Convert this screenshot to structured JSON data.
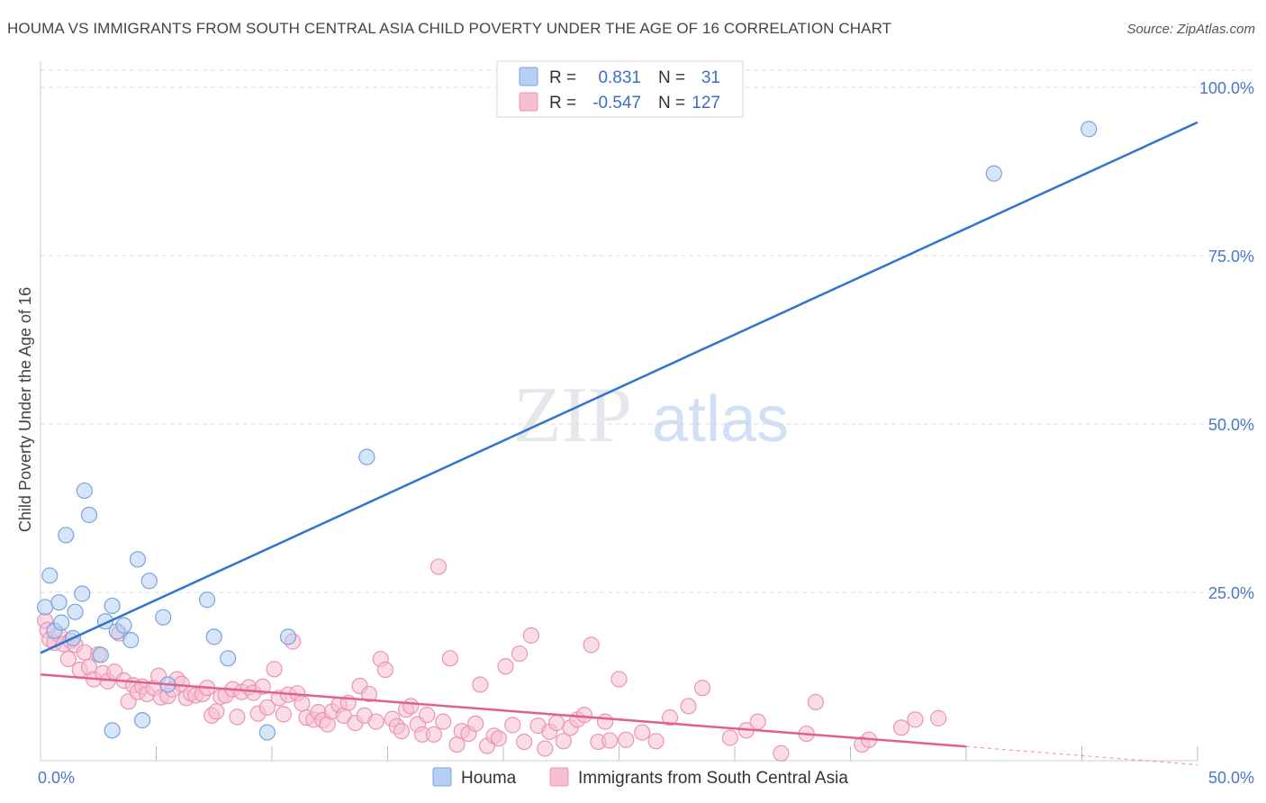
{
  "title": "HOUMA VS IMMIGRANTS FROM SOUTH CENTRAL ASIA CHILD POVERTY UNDER THE AGE OF 16 CORRELATION CHART",
  "source": "Source: ZipAtlas.com",
  "watermark": {
    "zip": "ZIP",
    "atlas": "atlas"
  },
  "colors": {
    "blue_fill": "#b7cff2",
    "blue_stroke": "#7aa3e0",
    "blue_line": "#2f74d0",
    "pink_fill": "#f6bfd1",
    "pink_stroke": "#ec94b3",
    "pink_line": "#e0608f",
    "grid": "#dddddd",
    "tick_text": "#4a78c8"
  },
  "legend": {
    "rows": [
      {
        "r_label": "R =",
        "r_value": "0.831",
        "n_label": "N =",
        "n_value": "31"
      },
      {
        "r_label": "R =",
        "r_value": "-0.547",
        "n_label": "N =",
        "n_value": "127"
      }
    ]
  },
  "chart_data": {
    "type": "scatter",
    "title": "HOUMA VS IMMIGRANTS FROM SOUTH CENTRAL ASIA CHILD POVERTY UNDER THE AGE OF 16 CORRELATION CHART",
    "xlabel": "",
    "ylabel": "Child Poverty Under the Age of 16",
    "xlim": [
      0,
      50
    ],
    "ylim": [
      0,
      100
    ],
    "x_tick_labels": [
      "0.0%",
      "50.0%"
    ],
    "y_ticks": [
      25,
      50,
      75,
      100
    ],
    "y_tick_labels": [
      "25.0%",
      "50.0%",
      "75.0%",
      "100.0%"
    ],
    "grid": true,
    "legend_position": "top-center",
    "series": [
      {
        "name": "Houma",
        "r": 0.831,
        "n": 31,
        "trend": {
          "x": [
            0,
            50
          ],
          "y": [
            16.0,
            94.8
          ]
        },
        "points": [
          {
            "x": 0.2,
            "y": 22.8
          },
          {
            "x": 0.4,
            "y": 27.5
          },
          {
            "x": 0.6,
            "y": 19.3
          },
          {
            "x": 0.8,
            "y": 23.5
          },
          {
            "x": 0.9,
            "y": 20.5
          },
          {
            "x": 1.1,
            "y": 33.5
          },
          {
            "x": 1.4,
            "y": 18.2
          },
          {
            "x": 1.5,
            "y": 22.1
          },
          {
            "x": 1.8,
            "y": 24.8
          },
          {
            "x": 1.9,
            "y": 40.1
          },
          {
            "x": 2.1,
            "y": 36.5
          },
          {
            "x": 2.6,
            "y": 15.7
          },
          {
            "x": 2.8,
            "y": 20.7
          },
          {
            "x": 3.1,
            "y": 23.0
          },
          {
            "x": 3.1,
            "y": 4.5
          },
          {
            "x": 3.3,
            "y": 19.2
          },
          {
            "x": 3.6,
            "y": 20.1
          },
          {
            "x": 3.9,
            "y": 17.9
          },
          {
            "x": 4.2,
            "y": 29.9
          },
          {
            "x": 4.4,
            "y": 6.0
          },
          {
            "x": 4.7,
            "y": 26.7
          },
          {
            "x": 5.3,
            "y": 21.3
          },
          {
            "x": 5.5,
            "y": 11.3
          },
          {
            "x": 7.2,
            "y": 23.9
          },
          {
            "x": 7.5,
            "y": 18.4
          },
          {
            "x": 8.1,
            "y": 15.2
          },
          {
            "x": 9.8,
            "y": 4.2
          },
          {
            "x": 10.7,
            "y": 18.4
          },
          {
            "x": 14.1,
            "y": 45.1
          },
          {
            "x": 41.2,
            "y": 87.2
          },
          {
            "x": 45.3,
            "y": 93.8
          }
        ]
      },
      {
        "name": "Immigrants from South Central Asia",
        "r": -0.547,
        "n": 127,
        "trend": {
          "x": [
            0,
            40
          ],
          "y": [
            12.8,
            2.1
          ]
        },
        "trend_dashed": {
          "x": [
            40,
            50
          ],
          "y": [
            2.1,
            -0.6
          ]
        },
        "points": [
          {
            "x": 0.2,
            "y": 20.8
          },
          {
            "x": 0.3,
            "y": 19.4
          },
          {
            "x": 0.4,
            "y": 18.0
          },
          {
            "x": 0.6,
            "y": 17.5
          },
          {
            "x": 0.8,
            "y": 18.7
          },
          {
            "x": 1.0,
            "y": 17.3
          },
          {
            "x": 1.2,
            "y": 15.1
          },
          {
            "x": 1.3,
            "y": 17.8
          },
          {
            "x": 1.5,
            "y": 17.2
          },
          {
            "x": 1.7,
            "y": 13.5
          },
          {
            "x": 1.9,
            "y": 16.1
          },
          {
            "x": 2.1,
            "y": 13.9
          },
          {
            "x": 2.3,
            "y": 12.1
          },
          {
            "x": 2.5,
            "y": 15.8
          },
          {
            "x": 2.7,
            "y": 13.0
          },
          {
            "x": 2.9,
            "y": 11.8
          },
          {
            "x": 3.2,
            "y": 13.2
          },
          {
            "x": 3.4,
            "y": 18.9
          },
          {
            "x": 3.6,
            "y": 11.9
          },
          {
            "x": 3.8,
            "y": 8.8
          },
          {
            "x": 4.0,
            "y": 11.2
          },
          {
            "x": 4.2,
            "y": 10.2
          },
          {
            "x": 4.4,
            "y": 11.0
          },
          {
            "x": 4.6,
            "y": 9.9
          },
          {
            "x": 4.9,
            "y": 10.8
          },
          {
            "x": 5.1,
            "y": 12.6
          },
          {
            "x": 5.2,
            "y": 9.4
          },
          {
            "x": 5.5,
            "y": 9.6
          },
          {
            "x": 5.7,
            "y": 10.6
          },
          {
            "x": 5.9,
            "y": 12.1
          },
          {
            "x": 6.1,
            "y": 11.4
          },
          {
            "x": 6.3,
            "y": 9.3
          },
          {
            "x": 6.5,
            "y": 10.0
          },
          {
            "x": 6.7,
            "y": 9.7
          },
          {
            "x": 7.0,
            "y": 9.9
          },
          {
            "x": 7.2,
            "y": 10.8
          },
          {
            "x": 7.4,
            "y": 6.7
          },
          {
            "x": 7.6,
            "y": 7.3
          },
          {
            "x": 7.8,
            "y": 9.5
          },
          {
            "x": 8.0,
            "y": 9.7
          },
          {
            "x": 8.3,
            "y": 10.6
          },
          {
            "x": 8.5,
            "y": 6.5
          },
          {
            "x": 8.7,
            "y": 10.2
          },
          {
            "x": 9.0,
            "y": 10.9
          },
          {
            "x": 9.2,
            "y": 10.1
          },
          {
            "x": 9.4,
            "y": 7.0
          },
          {
            "x": 9.6,
            "y": 11.0
          },
          {
            "x": 9.8,
            "y": 7.9
          },
          {
            "x": 10.1,
            "y": 13.6
          },
          {
            "x": 10.3,
            "y": 9.3
          },
          {
            "x": 10.5,
            "y": 6.9
          },
          {
            "x": 10.7,
            "y": 9.8
          },
          {
            "x": 10.9,
            "y": 17.7
          },
          {
            "x": 11.1,
            "y": 10.0
          },
          {
            "x": 11.3,
            "y": 8.5
          },
          {
            "x": 11.5,
            "y": 6.4
          },
          {
            "x": 11.8,
            "y": 6.1
          },
          {
            "x": 12.0,
            "y": 7.2
          },
          {
            "x": 12.2,
            "y": 6.0
          },
          {
            "x": 12.4,
            "y": 5.4
          },
          {
            "x": 12.6,
            "y": 7.3
          },
          {
            "x": 12.9,
            "y": 8.3
          },
          {
            "x": 13.1,
            "y": 6.7
          },
          {
            "x": 13.3,
            "y": 8.6
          },
          {
            "x": 13.6,
            "y": 5.6
          },
          {
            "x": 13.8,
            "y": 11.1
          },
          {
            "x": 14.0,
            "y": 6.7
          },
          {
            "x": 14.2,
            "y": 9.9
          },
          {
            "x": 14.5,
            "y": 5.8
          },
          {
            "x": 14.7,
            "y": 15.1
          },
          {
            "x": 14.9,
            "y": 13.5
          },
          {
            "x": 15.2,
            "y": 6.2
          },
          {
            "x": 15.4,
            "y": 5.1
          },
          {
            "x": 15.6,
            "y": 4.4
          },
          {
            "x": 15.8,
            "y": 7.6
          },
          {
            "x": 16.0,
            "y": 8.1
          },
          {
            "x": 16.3,
            "y": 5.4
          },
          {
            "x": 16.5,
            "y": 3.9
          },
          {
            "x": 16.7,
            "y": 6.8
          },
          {
            "x": 17.0,
            "y": 3.9
          },
          {
            "x": 17.2,
            "y": 28.8
          },
          {
            "x": 17.4,
            "y": 5.8
          },
          {
            "x": 17.7,
            "y": 15.2
          },
          {
            "x": 18.0,
            "y": 2.4
          },
          {
            "x": 18.2,
            "y": 4.4
          },
          {
            "x": 18.5,
            "y": 4.0
          },
          {
            "x": 18.8,
            "y": 5.5
          },
          {
            "x": 19.0,
            "y": 11.3
          },
          {
            "x": 19.3,
            "y": 2.2
          },
          {
            "x": 19.6,
            "y": 3.7
          },
          {
            "x": 19.8,
            "y": 3.3
          },
          {
            "x": 20.1,
            "y": 14.0
          },
          {
            "x": 20.4,
            "y": 5.3
          },
          {
            "x": 20.7,
            "y": 15.9
          },
          {
            "x": 20.9,
            "y": 2.8
          },
          {
            "x": 21.2,
            "y": 18.6
          },
          {
            "x": 21.5,
            "y": 5.2
          },
          {
            "x": 21.8,
            "y": 1.8
          },
          {
            "x": 22.0,
            "y": 4.3
          },
          {
            "x": 22.3,
            "y": 5.6
          },
          {
            "x": 22.6,
            "y": 2.9
          },
          {
            "x": 22.9,
            "y": 4.9
          },
          {
            "x": 23.2,
            "y": 6.1
          },
          {
            "x": 23.5,
            "y": 6.8
          },
          {
            "x": 23.8,
            "y": 17.2
          },
          {
            "x": 24.1,
            "y": 2.8
          },
          {
            "x": 24.4,
            "y": 5.8
          },
          {
            "x": 24.6,
            "y": 3.0
          },
          {
            "x": 25.0,
            "y": 12.1
          },
          {
            "x": 25.3,
            "y": 3.1
          },
          {
            "x": 26.0,
            "y": 4.2
          },
          {
            "x": 26.6,
            "y": 2.9
          },
          {
            "x": 27.2,
            "y": 6.4
          },
          {
            "x": 28.0,
            "y": 8.1
          },
          {
            "x": 28.6,
            "y": 10.8
          },
          {
            "x": 29.8,
            "y": 3.4
          },
          {
            "x": 30.5,
            "y": 4.5
          },
          {
            "x": 31.0,
            "y": 5.8
          },
          {
            "x": 32.0,
            "y": 1.1
          },
          {
            "x": 33.1,
            "y": 4.0
          },
          {
            "x": 33.5,
            "y": 8.7
          },
          {
            "x": 35.5,
            "y": 2.4
          },
          {
            "x": 35.8,
            "y": 3.1
          },
          {
            "x": 37.2,
            "y": 4.9
          },
          {
            "x": 37.8,
            "y": 6.1
          },
          {
            "x": 38.8,
            "y": 6.3
          }
        ]
      }
    ]
  },
  "bottom_legend": [
    {
      "label": "Houma"
    },
    {
      "label": "Immigrants from South Central Asia"
    }
  ]
}
